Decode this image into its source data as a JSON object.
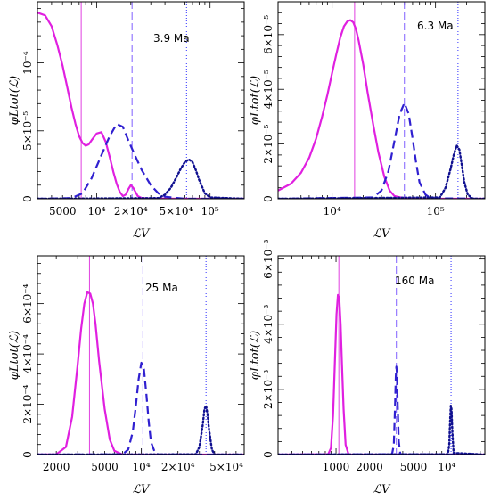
{
  "chart_data": [
    {
      "type": "line",
      "age_label": "3.9 Ma",
      "xlabel": "ℒV",
      "ylabel": "φLtot(ℒ)",
      "xscale": "log",
      "xlim": [
        3000,
        200000
      ],
      "ylim": [
        0,
        0.000145
      ],
      "x_ticks": [
        5000,
        10000,
        20000,
        50000,
        100000
      ],
      "x_tick_labels": [
        "5000",
        "10⁴",
        "2×10⁴",
        "5×10⁴",
        "10⁵"
      ],
      "y_ticks": [
        0,
        5e-05,
        0.0001
      ],
      "y_tick_labels": [
        "0",
        "5×10⁻⁵",
        "10⁻⁴"
      ],
      "vlines": [
        {
          "x": 7300,
          "color": "#e040e0",
          "style": "solid"
        },
        {
          "x": 20500,
          "color": "#8060ff",
          "style": "dashed"
        },
        {
          "x": 62000,
          "color": "#3030ff",
          "style": "dotted"
        }
      ],
      "series": [
        {
          "color": "#e020e0",
          "style": "solid",
          "x": [
            3000,
            3500,
            4000,
            4500,
            5000,
            5500,
            6000,
            6500,
            7000,
            7500,
            8000,
            8500,
            9000,
            10000,
            11000,
            12000,
            13000,
            14000,
            15000,
            16000,
            17000,
            18000,
            19000,
            20000,
            21000,
            22000,
            23000,
            25000,
            30000,
            40000,
            60000,
            100000,
            200000
          ],
          "y": [
            0.000137,
            0.000135,
            0.000127,
            0.000113,
            9.8e-05,
            8.2e-05,
            6.7e-05,
            5.5e-05,
            4.6e-05,
            4.1e-05,
            3.9e-05,
            4e-05,
            4.3e-05,
            4.8e-05,
            4.9e-05,
            4.2e-05,
            3.1e-05,
            2e-05,
            1.1e-05,
            5e-06,
            2e-06,
            3e-06,
            7e-06,
            1e-05,
            8e-06,
            5e-06,
            2e-06,
            5e-07,
            2e-07,
            1e-07,
            0,
            0,
            0
          ]
        },
        {
          "color": "#3020d0",
          "style": "dashed",
          "x": [
            3000,
            6000,
            7500,
            9000,
            11000,
            13000,
            15000,
            17000,
            19000,
            22000,
            25000,
            30000,
            35000,
            40000,
            60000,
            100000,
            200000
          ],
          "y": [
            0,
            5e-07,
            4e-06,
            1.5e-05,
            3.2e-05,
            4.6e-05,
            5.5e-05,
            5.3e-05,
            4.3e-05,
            3.1e-05,
            2.1e-05,
            1e-05,
            4e-06,
            1.5e-06,
            0,
            0,
            0
          ]
        },
        {
          "color": "#101090",
          "style": "dotted",
          "x": [
            3000,
            35000,
            40000,
            45000,
            50000,
            55000,
            60000,
            65000,
            70000,
            75000,
            80000,
            90000,
            100000,
            200000
          ],
          "y": [
            0,
            5e-07,
            3e-06,
            8e-06,
            1.5e-05,
            2.2e-05,
            2.7e-05,
            2.9e-05,
            2.7e-05,
            2.1e-05,
            1.4e-05,
            4e-06,
            1e-06,
            0
          ]
        }
      ]
    },
    {
      "type": "line",
      "age_label": "6.3 Ma",
      "xlabel": "ℒV",
      "ylabel": "φLtot(ℒ)",
      "xscale": "log",
      "xlim": [
        3000,
        300000
      ],
      "ylim": [
        0,
        7.2e-05
      ],
      "x_ticks": [
        10000,
        100000
      ],
      "x_tick_labels": [
        "10⁴",
        "10⁵"
      ],
      "y_ticks": [
        0,
        2e-05,
        4e-05,
        6e-05
      ],
      "y_tick_labels": [
        "0",
        "2×10⁻⁵",
        "4×10⁻⁵",
        "6×10⁻⁵"
      ],
      "vlines": [
        {
          "x": 16500,
          "color": "#e040e0",
          "style": "solid"
        },
        {
          "x": 50000,
          "color": "#8060ff",
          "style": "dashed"
        },
        {
          "x": 165000,
          "color": "#3030ff",
          "style": "dotted"
        }
      ],
      "series": [
        {
          "color": "#e020e0",
          "style": "solid",
          "x": [
            3000,
            4000,
            5000,
            6000,
            7000,
            8000,
            9000,
            10000,
            11000,
            12000,
            13000,
            14000,
            15000,
            16000,
            17000,
            18000,
            20000,
            22000,
            25000,
            28000,
            32000,
            36000,
            40000,
            50000,
            70000,
            300000
          ],
          "y": [
            3e-06,
            5.5e-06,
            9.5e-06,
            1.5e-05,
            2.2e-05,
            3e-05,
            3.8e-05,
            4.6e-05,
            5.3e-05,
            5.9e-05,
            6.3e-05,
            6.48e-05,
            6.53e-05,
            6.45e-05,
            6.2e-05,
            5.8e-05,
            4.9e-05,
            3.9e-05,
            2.7e-05,
            1.7e-05,
            8e-06,
            3e-06,
            1e-06,
            2e-07,
            0,
            0
          ]
        },
        {
          "color": "#3020d0",
          "style": "dashed",
          "x": [
            3000,
            25000,
            30000,
            35000,
            40000,
            45000,
            50000,
            55000,
            60000,
            65000,
            70000,
            80000,
            90000,
            300000
          ],
          "y": [
            0,
            5e-07,
            3e-06,
            1e-05,
            2.1e-05,
            3.1e-05,
            3.5e-05,
            3.1e-05,
            2.2e-05,
            1.3e-05,
            6e-06,
            1.5e-06,
            2e-07,
            0
          ]
        },
        {
          "color": "#101090",
          "style": "dotted",
          "x": [
            3000,
            110000,
            125000,
            140000,
            150000,
            160000,
            170000,
            180000,
            190000,
            205000,
            230000,
            300000
          ],
          "y": [
            0,
            5e-07,
            4e-06,
            1.1e-05,
            1.6e-05,
            1.95e-05,
            1.8e-05,
            1.2e-05,
            6e-06,
            1.5e-06,
            0,
            0
          ]
        }
      ]
    },
    {
      "type": "line",
      "age_label": "25 Ma",
      "xlabel": "ℒV",
      "ylabel": "φLtot(ℒ)",
      "xscale": "log",
      "xlim": [
        1400,
        70000
      ],
      "ylim": [
        0,
        0.00079
      ],
      "x_ticks": [
        2000,
        5000,
        10000,
        20000,
        50000
      ],
      "x_tick_labels": [
        "2000",
        "5000",
        "10⁴",
        "2×10⁴",
        "5×10⁴"
      ],
      "y_ticks": [
        0,
        0.0002,
        0.0004,
        0.0006
      ],
      "y_tick_labels": [
        "0",
        "2×10⁻⁴",
        "4×10⁻⁴",
        "6×10⁻⁴"
      ],
      "vlines": [
        {
          "x": 3750,
          "color": "#e040e0",
          "style": "solid"
        },
        {
          "x": 10300,
          "color": "#8060ff",
          "style": "dashed"
        },
        {
          "x": 34000,
          "color": "#3030ff",
          "style": "dotted"
        }
      ],
      "series": [
        {
          "color": "#e020e0",
          "style": "solid",
          "x": [
            1400,
            2000,
            2400,
            2700,
            3000,
            3200,
            3400,
            3600,
            3800,
            4000,
            4200,
            4500,
            5000,
            5500,
            6000,
            7000,
            70000
          ],
          "y": [
            0,
            1e-06,
            3e-05,
            0.00015,
            0.00036,
            0.0005,
            0.0006,
            0.000645,
            0.00064,
            0.0006,
            0.00052,
            0.00037,
            0.00018,
            6e-05,
            1.5e-05,
            0,
            0
          ]
        },
        {
          "color": "#3020d0",
          "style": "dashed",
          "x": [
            1400,
            7000,
            7800,
            8500,
            9000,
            9500,
            10000,
            10500,
            11000,
            11500,
            12000,
            13000,
            14000,
            70000
          ],
          "y": [
            0,
            1e-06,
            2e-05,
            9e-05,
            0.00019,
            0.0003,
            0.000365,
            0.00034,
            0.00024,
            0.00013,
            5e-05,
            5e-06,
            0,
            0
          ]
        },
        {
          "color": "#101090",
          "style": "dotted",
          "x": [
            1400,
            28000,
            30000,
            32000,
            33000,
            34000,
            35000,
            36000,
            38000,
            40000,
            70000
          ],
          "y": [
            0,
            1e-06,
            3e-05,
            0.00012,
            0.00018,
            0.000195,
            0.00016,
            0.0001,
            2e-05,
            0,
            0
          ]
        }
      ]
    },
    {
      "type": "line",
      "age_label": "160 Ma",
      "xlabel": "ℒV",
      "ylabel": "φLtot(ℒ)",
      "xscale": "log",
      "xlim": [
        300,
        22000
      ],
      "ylim": [
        0,
        0.0061
      ],
      "x_ticks": [
        1000,
        2000,
        5000,
        10000
      ],
      "x_tick_labels": [
        "1000",
        "2000",
        "5000",
        "10⁴"
      ],
      "y_ticks": [
        0,
        0.002,
        0.004,
        0.006
      ],
      "y_tick_labels": [
        "0",
        "2×10⁻³",
        "4×10⁻³",
        "6×10⁻³"
      ],
      "vlines": [
        {
          "x": 1060,
          "color": "#e040e0",
          "style": "solid"
        },
        {
          "x": 3500,
          "color": "#8060ff",
          "style": "dashed"
        },
        {
          "x": 10900,
          "color": "#3030ff",
          "style": "dotted"
        }
      ],
      "series": [
        {
          "color": "#e020e0",
          "style": "solid",
          "x": [
            300,
            850,
            900,
            940,
            980,
            1010,
            1040,
            1070,
            1100,
            1130,
            1170,
            1220,
            1300,
            22000
          ],
          "y": [
            0,
            1e-05,
            0.0002,
            0.0012,
            0.003,
            0.0043,
            0.0049,
            0.0048,
            0.004,
            0.0028,
            0.0014,
            0.0003,
            0,
            0
          ]
        },
        {
          "color": "#3020d0",
          "style": "dashed",
          "x": [
            300,
            3200,
            3320,
            3400,
            3460,
            3500,
            3540,
            3600,
            3680,
            3800,
            22000
          ],
          "y": [
            0,
            1e-05,
            0.0003,
            0.0014,
            0.0024,
            0.0027,
            0.0025,
            0.0015,
            0.0004,
            1e-05,
            0
          ]
        },
        {
          "color": "#101090",
          "style": "dotted",
          "x": [
            300,
            10200,
            10500,
            10700,
            10850,
            11000,
            11200,
            11500,
            22000
          ],
          "y": [
            0,
            1e-05,
            0.0003,
            0.0011,
            0.0015,
            0.0014,
            0.0007,
            5e-05,
            0
          ]
        }
      ]
    }
  ]
}
